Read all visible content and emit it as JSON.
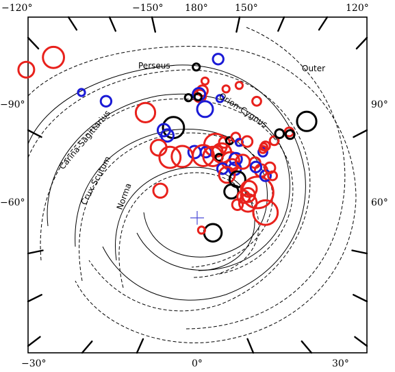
{
  "chart_data": {
    "type": "scatter",
    "title": "",
    "xlabel": "",
    "ylabel": "",
    "tick_labels": {
      "top": [
        "−120°",
        "−150°",
        "180°",
        "150°",
        "120°"
      ],
      "bottom": [
        "−30°",
        "0°",
        "30°"
      ],
      "left": [
        "−90°",
        "−60°"
      ],
      "right": [
        "90°",
        "60°"
      ]
    },
    "arm_labels": [
      "Perseus",
      "Outer",
      "Orion-Cygnus",
      "Carina-Sagittarius",
      "Crux-Scutum",
      "Norma"
    ],
    "colors": {
      "red": "#e8211c",
      "blue": "#1a1ad6",
      "black": "#000000",
      "sun_marker": "#4a4ad6"
    },
    "sun_marker": {
      "x": 0.0,
      "y": 0.0
    },
    "sources": [
      {
        "x": -16.4,
        "y": 18.3,
        "r": 1.2,
        "color": "red"
      },
      {
        "x": -10.4,
        "y": 13.3,
        "r": 0.6,
        "color": "blue"
      },
      {
        "x": -5.9,
        "y": 12.0,
        "r": 1.1,
        "color": "red"
      },
      {
        "x": -2.7,
        "y": 10.3,
        "r": 1.2,
        "color": "black"
      },
      {
        "x": -3.8,
        "y": 10.0,
        "r": 0.7,
        "color": "blue"
      },
      {
        "x": -3.4,
        "y": 9.4,
        "r": 0.7,
        "color": "blue"
      },
      {
        "x": -4.4,
        "y": 8.0,
        "r": 0.9,
        "color": "red"
      },
      {
        "x": -0.1,
        "y": 17.2,
        "r": 0.4,
        "color": "black"
      },
      {
        "x": 2.4,
        "y": 18.1,
        "r": 0.6,
        "color": "blue"
      },
      {
        "x": 0.9,
        "y": 15.6,
        "r": 0.4,
        "color": "red"
      },
      {
        "x": 0.6,
        "y": 14.5,
        "r": 0.6,
        "color": "red"
      },
      {
        "x": 0.3,
        "y": 13.9,
        "r": 0.7,
        "color": "red"
      },
      {
        "x": 0.2,
        "y": 14.1,
        "r": 0.7,
        "color": "blue"
      },
      {
        "x": 0.1,
        "y": 13.8,
        "r": 0.4,
        "color": "black"
      },
      {
        "x": -1.0,
        "y": 13.7,
        "r": 0.4,
        "color": "black"
      },
      {
        "x": 0.9,
        "y": 12.4,
        "r": 0.9,
        "color": "blue"
      },
      {
        "x": 2.6,
        "y": 13.6,
        "r": 0.4,
        "color": "blue"
      },
      {
        "x": 3.3,
        "y": 14.7,
        "r": 0.4,
        "color": "red"
      },
      {
        "x": 4.8,
        "y": 15.1,
        "r": 0.4,
        "color": "red"
      },
      {
        "x": 6.8,
        "y": 13.3,
        "r": 0.5,
        "color": "red"
      },
      {
        "x": 10.5,
        "y": 9.8,
        "r": 0.5,
        "color": "red"
      },
      {
        "x": 10.6,
        "y": 9.5,
        "r": 0.5,
        "color": "black"
      },
      {
        "x": 12.5,
        "y": 11.0,
        "r": 1.1,
        "color": "black"
      },
      {
        "x": 2.1,
        "y": 8.3,
        "r": 1.3,
        "color": "red"
      },
      {
        "x": 2.3,
        "y": 7.6,
        "r": 0.6,
        "color": "red"
      },
      {
        "x": 3.1,
        "y": 8.6,
        "r": 0.6,
        "color": "red"
      },
      {
        "x": 3.7,
        "y": 8.8,
        "r": 0.4,
        "color": "black"
      },
      {
        "x": 4.4,
        "y": 9.2,
        "r": 0.5,
        "color": "red"
      },
      {
        "x": 4.8,
        "y": 8.6,
        "r": 0.4,
        "color": "blue"
      },
      {
        "x": 5.7,
        "y": 8.7,
        "r": 0.6,
        "color": "red"
      },
      {
        "x": 1.0,
        "y": 7.5,
        "r": 0.6,
        "color": "blue"
      },
      {
        "x": -0.3,
        "y": 7.5,
        "r": 0.7,
        "color": "blue"
      },
      {
        "x": 0.7,
        "y": 7.1,
        "r": 1.2,
        "color": "red"
      },
      {
        "x": -1.7,
        "y": 7.0,
        "r": 1.2,
        "color": "red"
      },
      {
        "x": -3.1,
        "y": 6.9,
        "r": 1.2,
        "color": "red"
      },
      {
        "x": 1.8,
        "y": 7.0,
        "r": 1.1,
        "color": "red"
      },
      {
        "x": 2.5,
        "y": 6.9,
        "r": 0.4,
        "color": "black"
      },
      {
        "x": 2.8,
        "y": 7.4,
        "r": 1.1,
        "color": "red"
      },
      {
        "x": 3.8,
        "y": 6.5,
        "r": 1.0,
        "color": "red"
      },
      {
        "x": 4.4,
        "y": 6.7,
        "r": 0.7,
        "color": "blue"
      },
      {
        "x": 4.0,
        "y": 6.0,
        "r": 0.7,
        "color": "red"
      },
      {
        "x": 2.9,
        "y": 5.6,
        "r": 0.6,
        "color": "blue"
      },
      {
        "x": 4.3,
        "y": 5.6,
        "r": 0.7,
        "color": "blue"
      },
      {
        "x": 5.2,
        "y": 6.4,
        "r": 0.8,
        "color": "red"
      },
      {
        "x": 6.6,
        "y": 6.3,
        "r": 0.6,
        "color": "red"
      },
      {
        "x": 7.3,
        "y": 5.4,
        "r": 0.7,
        "color": "red"
      },
      {
        "x": 3.4,
        "y": 4.9,
        "r": 0.9,
        "color": "red"
      },
      {
        "x": 4.6,
        "y": 4.4,
        "r": 0.9,
        "color": "black"
      },
      {
        "x": 3.9,
        "y": 3.0,
        "r": 0.8,
        "color": "black"
      },
      {
        "x": 6.9,
        "y": 2.9,
        "r": 1.8,
        "color": "red"
      },
      {
        "x": 6.7,
        "y": 5.8,
        "r": 0.6,
        "color": "blue"
      },
      {
        "x": 7.8,
        "y": 4.8,
        "r": 0.6,
        "color": "blue"
      },
      {
        "x": 8.6,
        "y": 4.8,
        "r": 0.5,
        "color": "red"
      },
      {
        "x": 8.3,
        "y": 5.7,
        "r": 0.6,
        "color": "red"
      },
      {
        "x": 7.5,
        "y": 7.5,
        "r": 0.5,
        "color": "blue"
      },
      {
        "x": 7.5,
        "y": 7.8,
        "r": 0.4,
        "color": "red"
      },
      {
        "x": 7.6,
        "y": 8.1,
        "r": 0.4,
        "color": "red"
      },
      {
        "x": 7.8,
        "y": 8.2,
        "r": 0.5,
        "color": "red"
      },
      {
        "x": 8.8,
        "y": 8.8,
        "r": 0.5,
        "color": "red"
      },
      {
        "x": 5.8,
        "y": 1.7,
        "r": 1.0,
        "color": "red"
      },
      {
        "x": 5.3,
        "y": 2.4,
        "r": 0.7,
        "color": "red"
      },
      {
        "x": 5.8,
        "y": 2.6,
        "r": 0.8,
        "color": "red"
      },
      {
        "x": 5.9,
        "y": 3.3,
        "r": 0.9,
        "color": "red"
      },
      {
        "x": 4.6,
        "y": 1.5,
        "r": 0.6,
        "color": "red"
      },
      {
        "x": -4.2,
        "y": 3.1,
        "r": 0.8,
        "color": "red"
      },
      {
        "x": 1.8,
        "y": -1.7,
        "r": 1.0,
        "color": "black"
      },
      {
        "x": 0.5,
        "y": -1.4,
        "r": 0.4,
        "color": "red"
      },
      {
        "x": -13.2,
        "y": 14.3,
        "r": 0.4,
        "color": "blue"
      },
      {
        "x": -19.5,
        "y": 16.9,
        "r": 0.9,
        "color": "red"
      },
      {
        "x": 7.8,
        "y": 0.6,
        "r": 1.4,
        "color": "red"
      },
      {
        "x": 9.4,
        "y": 9.6,
        "r": 0.5,
        "color": "black"
      }
    ]
  }
}
